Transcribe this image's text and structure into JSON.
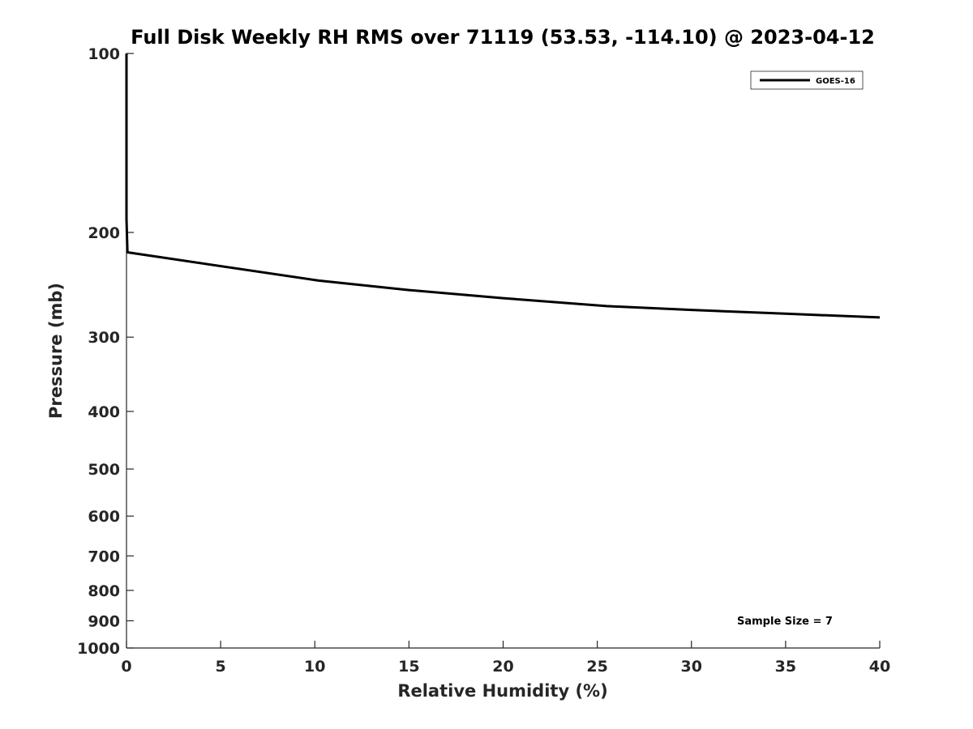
{
  "chart_data": {
    "type": "line",
    "title": "Full Disk Weekly RH RMS over 71119 (53.53, -114.10) @ 2023-04-12",
    "xlabel": "Relative Humidity (%)",
    "ylabel": "Pressure (mb)",
    "xlim": [
      0,
      40
    ],
    "ylim": [
      100,
      1000
    ],
    "y_scale": "log",
    "y_reversed": true,
    "x_ticks": [
      0,
      5,
      10,
      15,
      20,
      25,
      30,
      35,
      40
    ],
    "x_tick_labels": [
      "0",
      "5",
      "10",
      "15",
      "20",
      "25",
      "30",
      "35",
      "40"
    ],
    "y_ticks": [
      100,
      200,
      300,
      400,
      500,
      600,
      700,
      800,
      900,
      1000
    ],
    "y_tick_labels": [
      "100",
      "200",
      "300",
      "400",
      "500",
      "600",
      "700",
      "800",
      "900",
      "1000"
    ],
    "grid": false,
    "legend_position": "top-right",
    "series": [
      {
        "name": "GOES-16",
        "color": "#000000",
        "x": [
          0,
          0,
          0,
          0.05,
          10.2,
          15,
          20,
          25.5,
          30,
          35,
          40
        ],
        "y": [
          100,
          150,
          190,
          216,
          241,
          250,
          258,
          266,
          270,
          274,
          278
        ]
      }
    ],
    "annotations": [
      "Sample Size = 7"
    ]
  }
}
